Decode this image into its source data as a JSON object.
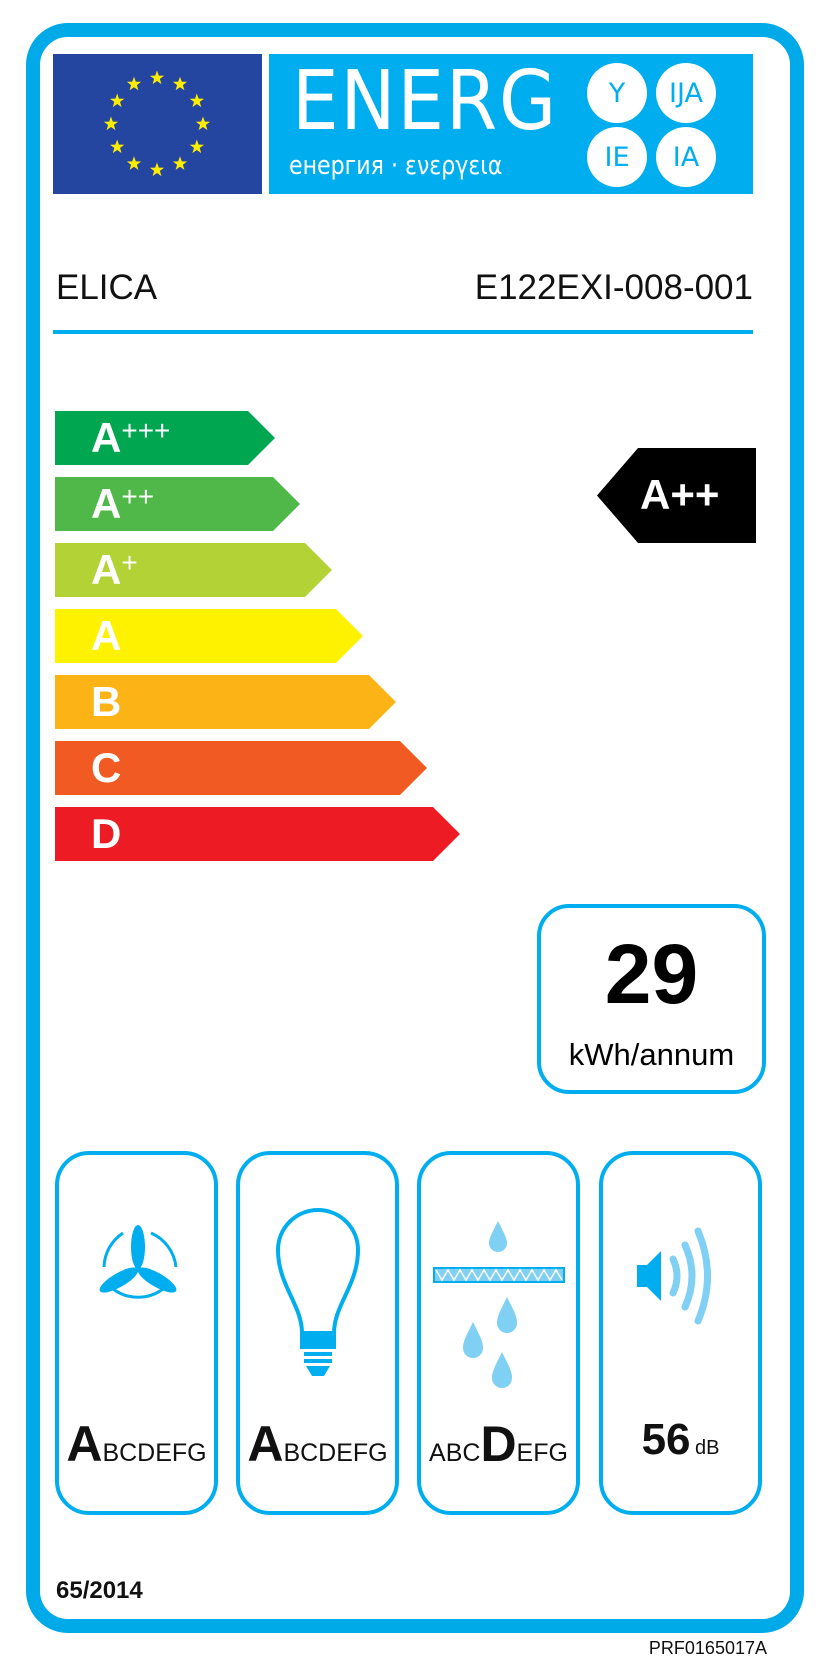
{
  "header": {
    "energy_title": "ENERG",
    "energy_subtitle": "енергия · ενεργεια",
    "language_suffixes": [
      "Y",
      "IJA",
      "IE",
      "IA"
    ]
  },
  "product": {
    "supplier": "ELICA",
    "model": "E122EXI-008-001"
  },
  "scale": {
    "classes": [
      {
        "letter": "A",
        "plus": "+++",
        "color": "#00a650"
      },
      {
        "letter": "A",
        "plus": "++",
        "color": "#50b848"
      },
      {
        "letter": "A",
        "plus": "+",
        "color": "#b2d235"
      },
      {
        "letter": "A",
        "plus": "",
        "color": "#fff200"
      },
      {
        "letter": "B",
        "plus": "",
        "color": "#fbb316"
      },
      {
        "letter": "C",
        "plus": "",
        "color": "#f15a22"
      },
      {
        "letter": "D",
        "plus": "",
        "color": "#ed1c24"
      }
    ],
    "rating": "A++"
  },
  "consumption": {
    "value": "29",
    "unit": "kWh/annum"
  },
  "pictograms": [
    {
      "icon": "fan-icon",
      "highlight": "A",
      "before": "",
      "after": "BCDEFG"
    },
    {
      "icon": "light-bulb-icon",
      "highlight": "A",
      "before": "",
      "after": "BCDEFG"
    },
    {
      "icon": "grease-filter-icon",
      "highlight": "D",
      "before": "ABC",
      "after": "EFG"
    },
    {
      "icon": "noise-icon",
      "value": "56",
      "unit": "dB"
    }
  ],
  "footer": {
    "regulation": "65/2014",
    "reference": "PRF0165017A"
  },
  "colors": {
    "frame": "#00aeef",
    "flag": "#2446a1",
    "stars": "#ffed00",
    "pictogram_light": "#7fd0f2"
  }
}
